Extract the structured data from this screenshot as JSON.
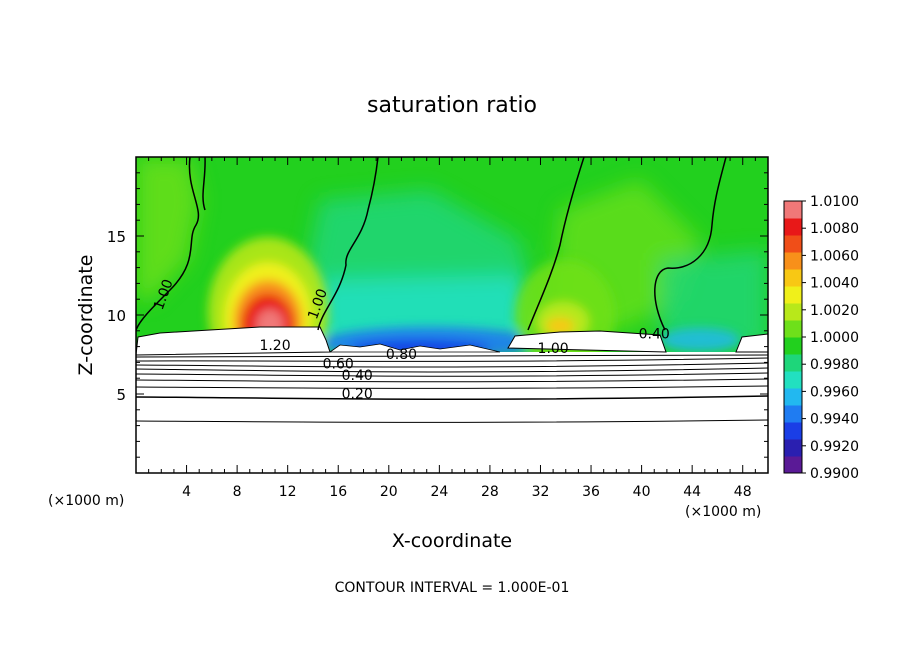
{
  "chart_data": {
    "type": "heatmap",
    "title": "saturation ratio",
    "xlabel": "X-coordinate",
    "ylabel": "Z-coordinate",
    "x_unit_left": "(×1000 m)",
    "x_unit_right": "(×1000 m)",
    "footer": "CONTOUR INTERVAL = 1.000E-01",
    "xlim": [
      0,
      50
    ],
    "ylim": [
      0,
      20
    ],
    "x_ticks": [
      4,
      8,
      12,
      16,
      20,
      24,
      28,
      32,
      36,
      40,
      44,
      48
    ],
    "y_ticks": [
      5,
      10,
      15
    ],
    "colorbar": {
      "range": [
        0.99,
        1.01
      ],
      "ticks": [
        "1.0100",
        "1.0080",
        "1.0060",
        "1.0040",
        "1.0020",
        "1.0000",
        "0.9980",
        "0.9960",
        "0.9940",
        "0.9920",
        "0.9900"
      ],
      "colors": [
        "#5a1a96",
        "#2a1fb0",
        "#1a3ee6",
        "#1f7cf2",
        "#22b8f0",
        "#22e0c0",
        "#1ed67a",
        "#22d01e",
        "#6ee01a",
        "#b8e81a",
        "#f0f01a",
        "#f8c814",
        "#f8901a",
        "#f04e18",
        "#e81818",
        "#f07878"
      ]
    },
    "contour_labels": [
      {
        "text": "1.00",
        "x": 2.5,
        "y": 11.2
      },
      {
        "text": "1.00",
        "x": 14.7,
        "y": 10.6
      },
      {
        "text": "1.20",
        "x": 11,
        "y": 7.8
      },
      {
        "text": "0.80",
        "x": 21,
        "y": 7.2
      },
      {
        "text": "0.60",
        "x": 16,
        "y": 6.6
      },
      {
        "text": "0.40",
        "x": 17.5,
        "y": 5.9
      },
      {
        "text": "0.20",
        "x": 17.5,
        "y": 4.7
      },
      {
        "text": "1.00",
        "x": 33,
        "y": 7.6
      },
      {
        "text": "0.40",
        "x": 41,
        "y": 8.5
      }
    ],
    "saturated_regions": [
      {
        "x": [
          0.3,
          15.5
        ],
        "z": [
          7.9,
          9.1
        ]
      },
      {
        "x": [
          29.5,
          41.5
        ],
        "z": [
          7.8,
          8.9
        ]
      },
      {
        "x": [
          47.5,
          50
        ],
        "z": [
          7.9,
          8.4
        ]
      }
    ],
    "hotspots": [
      {
        "x": 10.6,
        "z": 9.0,
        "value": 1.0095
      },
      {
        "x": 33.5,
        "z": 9.0,
        "value": 1.003
      },
      {
        "x": 22.0,
        "z": 8.5,
        "value": 0.9925
      }
    ]
  }
}
